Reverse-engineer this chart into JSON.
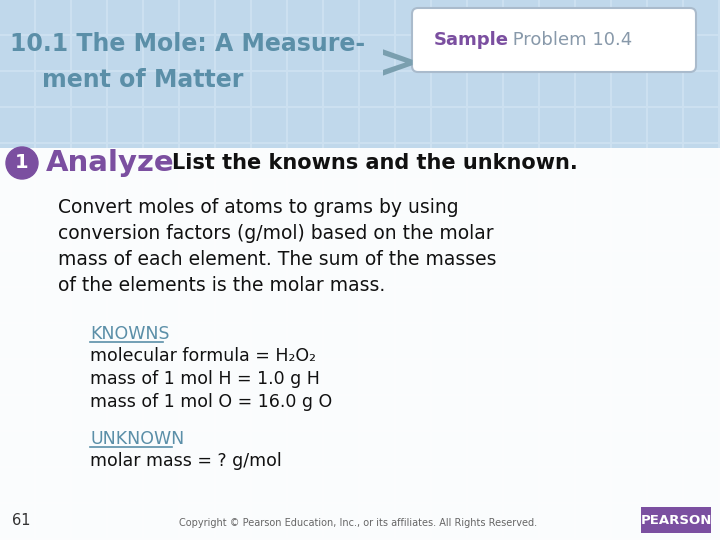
{
  "bg_color": "#cce0f0",
  "bg_grid_color": "#b8d4e8",
  "title_line1": "10.1 The Mole: A Measure-",
  "title_line2": "ment of Matter",
  "title_color": "#5b8fa8",
  "arrow_color": "#7a9faf",
  "sample_label": "Sample",
  "sample_rest": " Problem 10.4",
  "sample_color": "#7b4fa0",
  "sample_rest_color": "#8899aa",
  "badge_num": "1",
  "badge_color": "#7b4fa0",
  "analyze_text": "Analyze",
  "analyze_color": "#7b4fa0",
  "step_text": "List the knowns and the unknown.",
  "step_color": "#111111",
  "body_lines": [
    "Convert moles of atoms to grams by using",
    "conversion factors (g/mol) based on the molar",
    "mass of each element. The sum of the masses",
    "of the elements is the molar mass."
  ],
  "body_color": "#111111",
  "knowns_label": "KNOWNS",
  "knowns_color": "#5b8fa8",
  "known_lines": [
    "molecular formula = H₂O₂",
    "mass of 1 mol H = 1.0 g H",
    "mass of 1 mol O = 16.0 g O"
  ],
  "unknown_label": "UNKNOWN",
  "unknown_color": "#5b8fa8",
  "unknown_line": "molar mass = ? g/mol",
  "page_num": "61",
  "copyright_text": "Copyright © Pearson Education, Inc., or its affiliates. All Rights Reserved.",
  "pearson_bg": "#7b4fa0",
  "pearson_text": "PEARSON"
}
